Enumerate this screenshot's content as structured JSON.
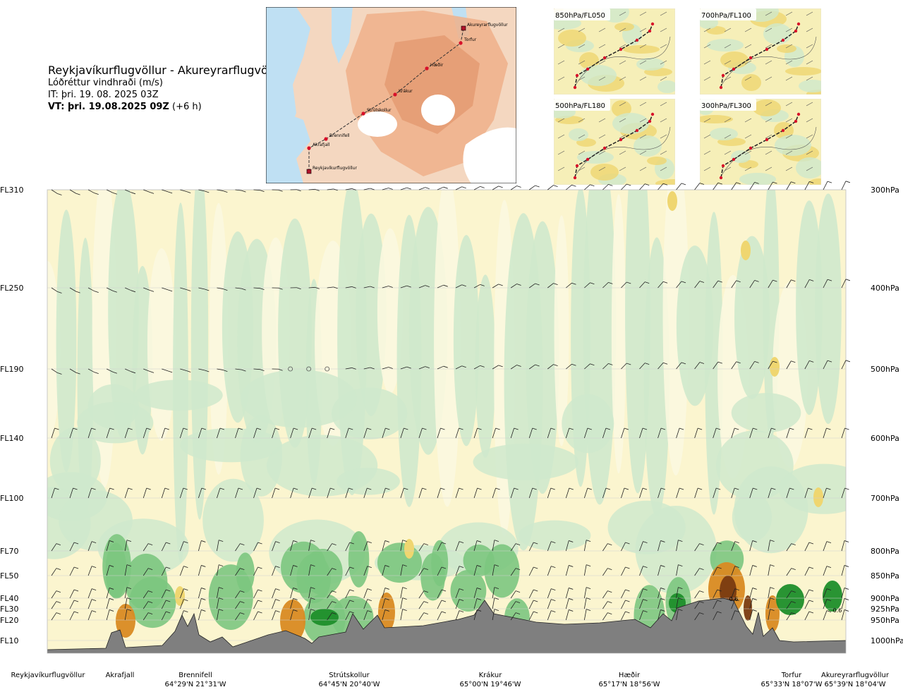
{
  "header": {
    "route_title": "Reykjavíkurflugvöllur - Akureyrarflugvöllur",
    "parameter": "Lóðréttur vindhraði (m/s)",
    "issue_time": "IT: þri. 19. 08. 2025 03Z",
    "valid_prefix": "VT: þri. 19.08.2025 09Z",
    "valid_suffix": " (+6 h)"
  },
  "overview_map": {
    "points": [
      "Akureyrarflugvöllur",
      "Torfur",
      "Hæðir",
      "Krákur",
      "Strútskollur",
      "Brennifell",
      "Akrafjall",
      "Reykjavíkurflugvöllur"
    ]
  },
  "level_maps": [
    {
      "label": "850hPa/FL050"
    },
    {
      "label": "700hPa/FL100"
    },
    {
      "label": "500hPa/FL180"
    },
    {
      "label": "300hPa/FL300"
    }
  ],
  "colors": {
    "green_dark": "#1e8e2a",
    "green_mid": "#7cc77f",
    "green_light": "#cfe9cc",
    "yellow_light": "#f7efb4",
    "yellow": "#efd670",
    "orange": "#d98a22",
    "brown": "#7a3b10",
    "terrain": "#7f7f7f",
    "pale": "#fbf8df"
  },
  "chart_data": {
    "type": "heatmap",
    "title": "Lóðréttur vindhraði (m/s)",
    "y_left_ticks": [
      "FL310",
      "FL250",
      "FL190",
      "FL140",
      "FL100",
      "FL70",
      "FL50",
      "FL40",
      "FL30",
      "FL20",
      "FL10"
    ],
    "y_right_ticks": [
      "300hPa",
      "400hPa",
      "500hPa",
      "600hPa",
      "700hPa",
      "800hPa",
      "850hPa",
      "900hPa",
      "925hPa",
      "950hPa",
      "1000hPa"
    ],
    "levels_hpa": [
      300,
      400,
      500,
      600,
      700,
      800,
      850,
      900,
      925,
      950,
      1000
    ],
    "x_points": [
      {
        "name": "Reykjavíkurflugvöllur",
        "coord": ""
      },
      {
        "name": "Akrafjall",
        "coord": ""
      },
      {
        "name": "Brennifell",
        "coord": "64°29'N 21°31'W"
      },
      {
        "name": "Strútskollur",
        "coord": "64°45'N 20°40'W"
      },
      {
        "name": "Krákur",
        "coord": "65°00'N 19°46'W"
      },
      {
        "name": "Hæðir",
        "coord": "65°17'N 18°56'W"
      },
      {
        "name": "Torfur",
        "coord": "65°33'N 18°07'W"
      },
      {
        "name": "Akureyrarflugvöllur",
        "coord": "65°39'N 18°04'W"
      }
    ],
    "annotations": [
      "0.6",
      "0.6"
    ]
  }
}
